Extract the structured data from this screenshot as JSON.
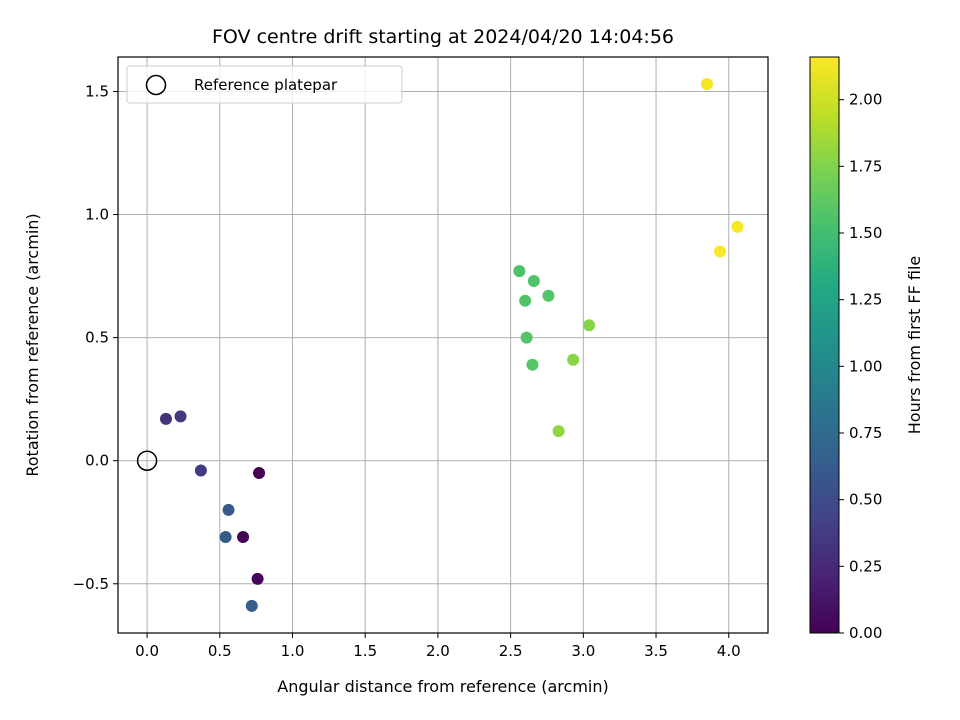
{
  "chart_data": {
    "type": "scatter",
    "title": "FOV centre drift starting at 2024/04/20 14:04:56",
    "xlabel": "Angular distance from reference (arcmin)",
    "ylabel": "Rotation from reference (arcmin)",
    "xlim": [
      -0.2,
      4.27
    ],
    "ylim": [
      -0.7,
      1.64
    ],
    "xticks": [
      0.0,
      0.5,
      1.0,
      1.5,
      2.0,
      2.5,
      3.0,
      3.5,
      4.0
    ],
    "xtick_labels": [
      "0.0",
      "0.5",
      "1.0",
      "1.5",
      "2.0",
      "2.5",
      "3.0",
      "3.5",
      "4.0"
    ],
    "yticks": [
      -0.5,
      0.0,
      0.5,
      1.0,
      1.5
    ],
    "ytick_labels": [
      "−0.5",
      "0.0",
      "0.5",
      "1.0",
      "1.5"
    ],
    "grid": true,
    "legend": {
      "placement": "upper-left",
      "entries": [
        "Reference platepar"
      ]
    },
    "reference_point": {
      "x": 0.0,
      "y": 0.0
    },
    "points": [
      {
        "x": 0.77,
        "y": -0.05,
        "c": 0.0
      },
      {
        "x": 0.66,
        "y": -0.31,
        "c": 0.02
      },
      {
        "x": 0.76,
        "y": -0.48,
        "c": 0.03
      },
      {
        "x": 0.13,
        "y": 0.17,
        "c": 0.32
      },
      {
        "x": 0.23,
        "y": 0.18,
        "c": 0.35
      },
      {
        "x": 0.37,
        "y": -0.04,
        "c": 0.38
      },
      {
        "x": 0.56,
        "y": -0.2,
        "c": 0.6
      },
      {
        "x": 0.54,
        "y": -0.31,
        "c": 0.62
      },
      {
        "x": 0.72,
        "y": -0.59,
        "c": 0.65
      },
      {
        "x": 2.56,
        "y": 0.77,
        "c": 1.55
      },
      {
        "x": 2.66,
        "y": 0.73,
        "c": 1.56
      },
      {
        "x": 2.6,
        "y": 0.65,
        "c": 1.56
      },
      {
        "x": 2.76,
        "y": 0.67,
        "c": 1.57
      },
      {
        "x": 2.61,
        "y": 0.5,
        "c": 1.57
      },
      {
        "x": 2.65,
        "y": 0.39,
        "c": 1.58
      },
      {
        "x": 3.04,
        "y": 0.55,
        "c": 1.77
      },
      {
        "x": 2.93,
        "y": 0.41,
        "c": 1.78
      },
      {
        "x": 2.83,
        "y": 0.12,
        "c": 1.8
      },
      {
        "x": 3.85,
        "y": 1.53,
        "c": 2.13
      },
      {
        "x": 4.06,
        "y": 0.95,
        "c": 2.14
      },
      {
        "x": 3.94,
        "y": 0.85,
        "c": 2.15
      }
    ],
    "colorbar": {
      "label": "Hours from first FF file",
      "colormap": "viridis",
      "range": [
        0.0,
        2.16
      ],
      "ticks": [
        0.0,
        0.25,
        0.5,
        0.75,
        1.0,
        1.25,
        1.5,
        1.75,
        2.0
      ],
      "tick_labels": [
        "0.00",
        "0.25",
        "0.50",
        "0.75",
        "1.00",
        "1.25",
        "1.50",
        "1.75",
        "2.00"
      ]
    }
  }
}
